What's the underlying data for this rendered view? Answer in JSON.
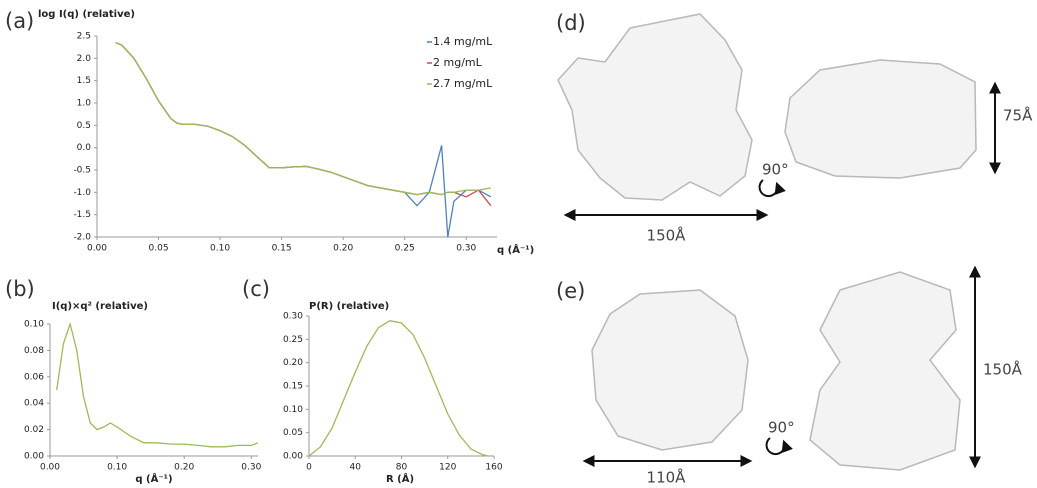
{
  "chart_data": [
    {
      "type": "line",
      "panel": "(a)",
      "title": "log I(q) (relative)",
      "xlabel": "q (Å⁻¹)",
      "x": [
        0.015,
        0.02,
        0.03,
        0.04,
        0.05,
        0.06,
        0.065,
        0.07,
        0.08,
        0.09,
        0.1,
        0.11,
        0.12,
        0.13,
        0.14,
        0.15,
        0.16,
        0.17,
        0.18,
        0.19,
        0.2,
        0.21,
        0.22,
        0.23,
        0.24,
        0.25,
        0.26,
        0.27,
        0.28,
        0.285,
        0.29,
        0.3,
        0.31,
        0.32
      ],
      "series": [
        {
          "name": "1.4 mg/mL",
          "color": "#4f81bd",
          "values": [
            2.35,
            2.3,
            2.0,
            1.55,
            1.05,
            0.65,
            0.55,
            0.52,
            0.52,
            0.48,
            0.38,
            0.25,
            0.05,
            -0.2,
            -0.45,
            -0.45,
            -0.43,
            -0.42,
            -0.48,
            -0.55,
            -0.65,
            -0.75,
            -0.85,
            -0.9,
            -0.95,
            -1.0,
            -1.3,
            -1.0,
            0.05,
            -2.0,
            -1.2,
            -0.95,
            -0.95,
            -1.1
          ]
        },
        {
          "name": "2 mg/mL",
          "color": "#c0504d",
          "values": [
            2.35,
            2.3,
            2.0,
            1.55,
            1.05,
            0.65,
            0.55,
            0.52,
            0.52,
            0.48,
            0.38,
            0.25,
            0.05,
            -0.2,
            -0.45,
            -0.45,
            -0.43,
            -0.42,
            -0.48,
            -0.55,
            -0.65,
            -0.75,
            -0.85,
            -0.9,
            -0.95,
            -1.0,
            -1.05,
            -1.0,
            -1.05,
            -1.0,
            -1.0,
            -1.1,
            -0.95,
            -1.3
          ]
        },
        {
          "name": "2.7 mg/mL",
          "color": "#9bbb59",
          "values": [
            2.35,
            2.3,
            2.0,
            1.55,
            1.05,
            0.65,
            0.55,
            0.52,
            0.52,
            0.48,
            0.38,
            0.25,
            0.05,
            -0.2,
            -0.45,
            -0.45,
            -0.43,
            -0.42,
            -0.48,
            -0.55,
            -0.65,
            -0.75,
            -0.85,
            -0.9,
            -0.95,
            -1.0,
            -1.05,
            -1.0,
            -1.05,
            -1.0,
            -1.0,
            -0.95,
            -0.95,
            -0.9
          ]
        }
      ],
      "legend": "upper right",
      "xlim": [
        0,
        0.325
      ],
      "ylim": [
        -2,
        2.5
      ],
      "xticks": [
        {
          "value": 0,
          "label": "0.00"
        },
        0.05,
        {
          "value": 0.1,
          "label": "0.10"
        },
        0.15,
        {
          "value": 0.2,
          "label": "0.20"
        },
        0.25,
        {
          "value": 0.3,
          "label": "0.30"
        }
      ],
      "yticks": [
        {
          "value": -2,
          "label": "-2.0"
        },
        -1.5,
        {
          "value": -1,
          "label": "-1.0"
        },
        -0.5,
        {
          "value": 0,
          "label": "0.0"
        },
        0.5,
        {
          "value": 1,
          "label": "1.0"
        },
        1.5,
        {
          "value": 2,
          "label": "2.0"
        },
        2.5
      ]
    },
    {
      "type": "line",
      "panel": "(b)",
      "title": "I(q)×q² (relative)",
      "xlabel": "q (Å⁻¹)",
      "x": [
        0.01,
        0.02,
        0.03,
        0.04,
        0.05,
        0.06,
        0.07,
        0.08,
        0.09,
        0.1,
        0.12,
        0.14,
        0.16,
        0.18,
        0.2,
        0.22,
        0.24,
        0.26,
        0.28,
        0.3,
        0.31
      ],
      "values": [
        0.05,
        0.085,
        0.1,
        0.08,
        0.045,
        0.025,
        0.02,
        0.022,
        0.025,
        0.022,
        0.015,
        0.01,
        0.01,
        0.009,
        0.009,
        0.008,
        0.007,
        0.007,
        0.008,
        0.008,
        0.01
      ],
      "color": "#9bbb59",
      "xlim": [
        0,
        0.31
      ],
      "ylim": [
        0,
        0.1
      ],
      "xticks": [
        {
          "value": 0,
          "label": "0.00"
        },
        {
          "value": 0.1,
          "label": "0.10"
        },
        {
          "value": 0.2,
          "label": "0.20"
        },
        {
          "value": 0.3,
          "label": "0.30"
        }
      ],
      "yticks": [
        {
          "value": 0,
          "label": "0.00"
        },
        0.02,
        0.04,
        0.06,
        0.08,
        {
          "value": 0.1,
          "label": "0.10"
        }
      ]
    },
    {
      "type": "line",
      "panel": "(c)",
      "title": "P(R) (relative)",
      "xlabel": "R (Å)",
      "x": [
        0,
        10,
        20,
        30,
        40,
        50,
        60,
        70,
        80,
        90,
        100,
        110,
        120,
        130,
        140,
        150,
        155
      ],
      "values": [
        0,
        0.02,
        0.06,
        0.12,
        0.18,
        0.235,
        0.275,
        0.29,
        0.285,
        0.26,
        0.21,
        0.15,
        0.09,
        0.045,
        0.015,
        0.003,
        0
      ],
      "color": "#9bbb59",
      "xlim": [
        0,
        160
      ],
      "ylim": [
        0,
        0.3
      ],
      "xticks": [
        0,
        40,
        80,
        120,
        160
      ],
      "yticks": [
        {
          "value": 0,
          "label": "0.00"
        },
        0.05,
        {
          "value": 0.1,
          "label": "0.10"
        },
        0.15,
        {
          "value": 0.2,
          "label": "0.20"
        },
        0.25,
        {
          "value": 0.3,
          "label": "0.30"
        }
      ]
    }
  ],
  "panels": [
    {
      "label": "(d)",
      "width": "150Å",
      "height": "75Å",
      "rotation": "90°"
    },
    {
      "label": "(e)",
      "width": "110Å",
      "height": "150Å",
      "rotation": "90°"
    }
  ]
}
